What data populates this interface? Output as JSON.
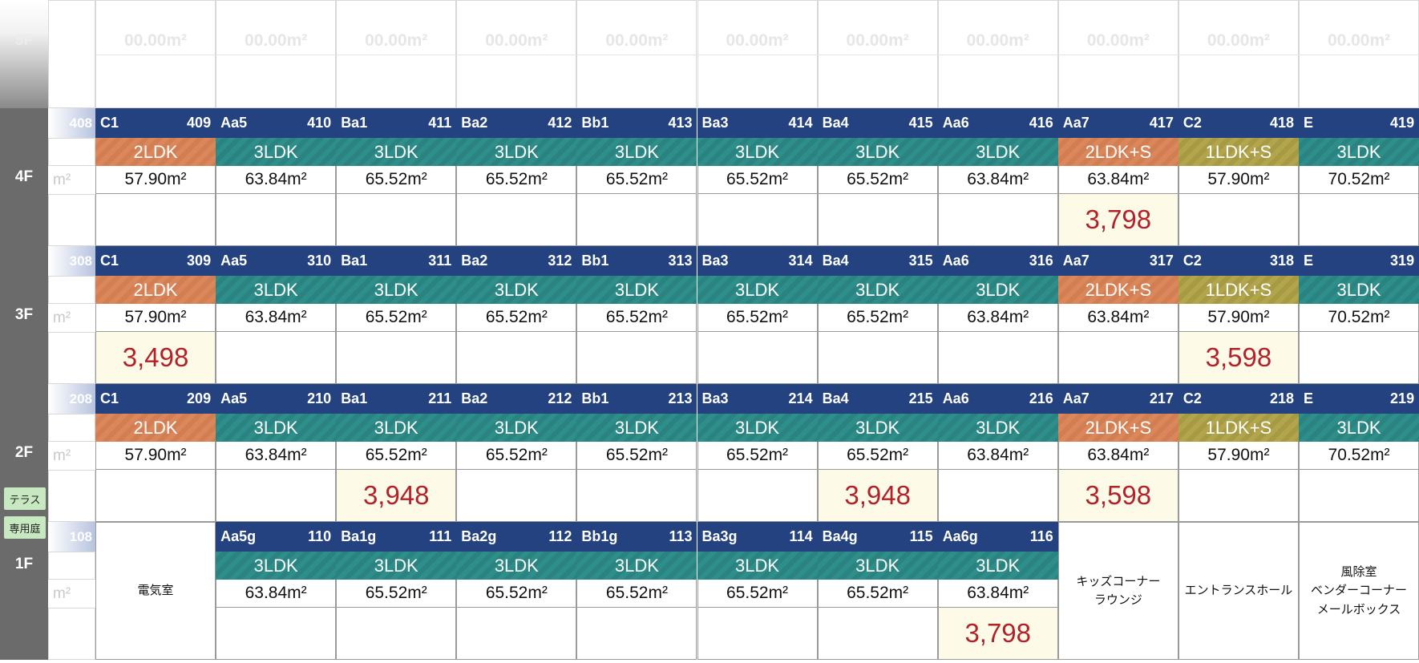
{
  "sqm": "m²",
  "top_ghost": {
    "floor_label": "5F",
    "area_text": "00.00m²",
    "columns": 11
  },
  "floors": [
    {
      "label": "4F",
      "first_number": "408",
      "units": [
        {
          "code": "C1",
          "number": "409",
          "type": "2LDK",
          "area": "57.90m²",
          "price": ""
        },
        {
          "code": "Aa5",
          "number": "410",
          "type": "3LDK",
          "area": "63.84m²",
          "price": ""
        },
        {
          "code": "Ba1",
          "number": "411",
          "type": "3LDK",
          "area": "65.52m²",
          "price": ""
        },
        {
          "code": "Ba2",
          "number": "412",
          "type": "3LDK",
          "area": "65.52m²",
          "price": ""
        },
        {
          "code": "Bb1",
          "number": "413",
          "type": "3LDK",
          "area": "65.52m²",
          "price": ""
        },
        {
          "code": "Ba3",
          "number": "414",
          "type": "3LDK",
          "area": "65.52m²",
          "price": ""
        },
        {
          "code": "Ba4",
          "number": "415",
          "type": "3LDK",
          "area": "65.52m²",
          "price": ""
        },
        {
          "code": "Aa6",
          "number": "416",
          "type": "3LDK",
          "area": "63.84m²",
          "price": ""
        },
        {
          "code": "Aa7",
          "number": "417",
          "type": "2LDK+S",
          "area": "63.84m²",
          "price": "3,798"
        },
        {
          "code": "C2",
          "number": "418",
          "type": "1LDK+S",
          "area": "57.90m²",
          "price": ""
        },
        {
          "code": "E",
          "number": "419",
          "type": "3LDK",
          "area": "70.52m²",
          "price": ""
        }
      ]
    },
    {
      "label": "3F",
      "first_number": "308",
      "units": [
        {
          "code": "C1",
          "number": "309",
          "type": "2LDK",
          "area": "57.90m²",
          "price": "3,498"
        },
        {
          "code": "Aa5",
          "number": "310",
          "type": "3LDK",
          "area": "63.84m²",
          "price": ""
        },
        {
          "code": "Ba1",
          "number": "311",
          "type": "3LDK",
          "area": "65.52m²",
          "price": ""
        },
        {
          "code": "Ba2",
          "number": "312",
          "type": "3LDK",
          "area": "65.52m²",
          "price": ""
        },
        {
          "code": "Bb1",
          "number": "313",
          "type": "3LDK",
          "area": "65.52m²",
          "price": ""
        },
        {
          "code": "Ba3",
          "number": "314",
          "type": "3LDK",
          "area": "65.52m²",
          "price": ""
        },
        {
          "code": "Ba4",
          "number": "315",
          "type": "3LDK",
          "area": "65.52m²",
          "price": ""
        },
        {
          "code": "Aa6",
          "number": "316",
          "type": "3LDK",
          "area": "63.84m²",
          "price": ""
        },
        {
          "code": "Aa7",
          "number": "317",
          "type": "2LDK+S",
          "area": "63.84m²",
          "price": ""
        },
        {
          "code": "C2",
          "number": "318",
          "type": "1LDK+S",
          "area": "57.90m²",
          "price": "3,598"
        },
        {
          "code": "E",
          "number": "319",
          "type": "3LDK",
          "area": "70.52m²",
          "price": ""
        }
      ]
    },
    {
      "label": "2F",
      "first_number": "208",
      "units": [
        {
          "code": "C1",
          "number": "209",
          "type": "2LDK",
          "area": "57.90m²",
          "price": ""
        },
        {
          "code": "Aa5",
          "number": "210",
          "type": "3LDK",
          "area": "63.84m²",
          "price": ""
        },
        {
          "code": "Ba1",
          "number": "211",
          "type": "3LDK",
          "area": "65.52m²",
          "price": "3,948"
        },
        {
          "code": "Ba2",
          "number": "212",
          "type": "3LDK",
          "area": "65.52m²",
          "price": ""
        },
        {
          "code": "Bb1",
          "number": "213",
          "type": "3LDK",
          "area": "65.52m²",
          "price": ""
        },
        {
          "code": "Ba3",
          "number": "214",
          "type": "3LDK",
          "area": "65.52m²",
          "price": ""
        },
        {
          "code": "Ba4",
          "number": "215",
          "type": "3LDK",
          "area": "65.52m²",
          "price": "3,948"
        },
        {
          "code": "Aa6",
          "number": "216",
          "type": "3LDK",
          "area": "63.84m²",
          "price": ""
        },
        {
          "code": "Aa7",
          "number": "217",
          "type": "2LDK+S",
          "area": "63.84m²",
          "price": "3,598"
        },
        {
          "code": "C2",
          "number": "218",
          "type": "1LDK+S",
          "area": "57.90m²",
          "price": ""
        },
        {
          "code": "E",
          "number": "219",
          "type": "3LDK",
          "area": "70.52m²",
          "price": ""
        }
      ]
    },
    {
      "label": "1F",
      "first_number": "108",
      "units": [
        {
          "facility": "電気室"
        },
        {
          "code": "Aa5g",
          "number": "110",
          "type": "3LDK",
          "area": "63.84m²",
          "price": ""
        },
        {
          "code": "Ba1g",
          "number": "111",
          "type": "3LDK",
          "area": "65.52m²",
          "price": ""
        },
        {
          "code": "Ba2g",
          "number": "112",
          "type": "3LDK",
          "area": "65.52m²",
          "price": ""
        },
        {
          "code": "Bb1g",
          "number": "113",
          "type": "3LDK",
          "area": "65.52m²",
          "price": ""
        },
        {
          "code": "Ba3g",
          "number": "114",
          "type": "3LDK",
          "area": "65.52m²",
          "price": ""
        },
        {
          "code": "Ba4g",
          "number": "115",
          "type": "3LDK",
          "area": "65.52m²",
          "price": ""
        },
        {
          "code": "Aa6g",
          "number": "116",
          "type": "3LDK",
          "area": "63.84m²",
          "price": "3,798"
        },
        {
          "facility": "キッズコーナー\nラウンジ"
        },
        {
          "facility": "エントランスホール"
        },
        {
          "facility": "風除室\nベンダーコーナー\nメールボックス"
        }
      ]
    }
  ],
  "legend": {
    "terrace": "テラス",
    "private_garden": "専用庭"
  },
  "colors": {
    "header_navy": "#23427f",
    "type_3ldk_teal": "#2e8e8a",
    "type_2ldk_orange": "#dc875b",
    "type_1ldks_olive": "#b2a54c",
    "price_red": "#b2222a",
    "price_bg": "#fdfbe8",
    "floor_label_gray": "#6b6b6b"
  }
}
